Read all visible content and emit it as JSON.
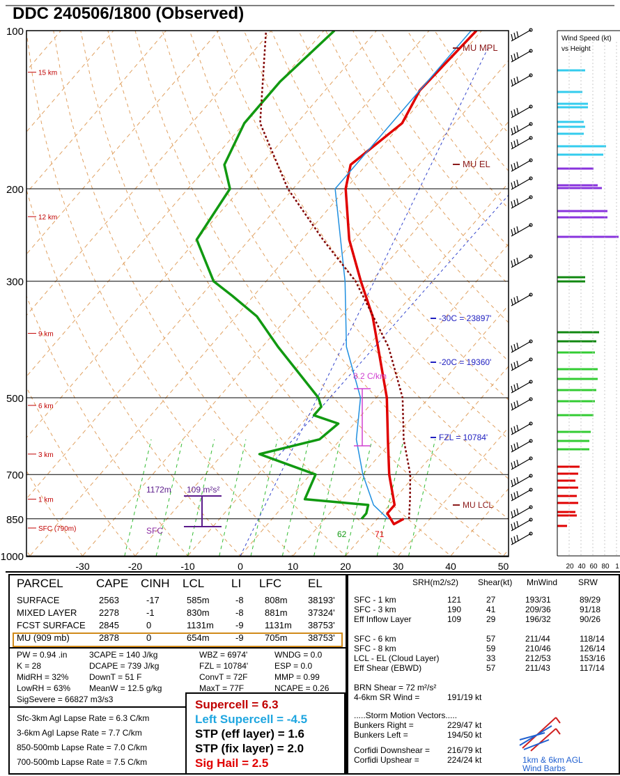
{
  "header": {
    "title": "DDC   240506/1800  (Observed)"
  },
  "chart_data": {
    "type": "line",
    "pressure_ticks": [
      "100",
      "200",
      "300",
      "500",
      "700",
      "850",
      "1000"
    ],
    "temp_ticks": [
      "-30",
      "-20",
      "-10",
      "0",
      "10",
      "20",
      "30",
      "40",
      "50"
    ],
    "height_labels": [
      "15 km",
      "12 km",
      "9 km",
      "6 km",
      "3 km",
      "1 km",
      "SFC (790m)"
    ],
    "annotations": {
      "mu_mpl": "MU  MPL",
      "mu_el": "MU  EL",
      "m30c": "-30C = 23897'",
      "m20c": "-20C = 19360'",
      "fzl": "FZL = 10784'",
      "lapse": "8.2 C/km",
      "lcl_lfc": "MU LCL",
      "inflow_top": "1172m",
      "inflow_srh": "109 m²s²",
      "sfc": "SFC",
      "sfc_td": "62",
      "sfc_t": "71"
    },
    "series": [
      {
        "name": "",
        "color": "#e00000",
        "points": [
          [
            850,
            25
          ],
          [
            870,
            24
          ],
          [
            830,
            21
          ],
          [
            800,
            21
          ],
          [
            700,
            15
          ],
          [
            600,
            9
          ],
          [
            500,
            2
          ],
          [
            400,
            -8
          ],
          [
            350,
            -14
          ],
          [
            300,
            -22
          ],
          [
            250,
            -31
          ],
          [
            200,
            -40
          ],
          [
            180,
            -43
          ],
          [
            150,
            -40
          ],
          [
            130,
            -42
          ],
          [
            100,
            -41
          ]
        ]
      },
      {
        "name": "",
        "color": "#119911",
        "points": [
          [
            850,
            17
          ],
          [
            830,
            17
          ],
          [
            800,
            16
          ],
          [
            780,
            3
          ],
          [
            700,
            1
          ],
          [
            640,
            -13
          ],
          [
            600,
            -4
          ],
          [
            560,
            -3
          ],
          [
            540,
            -9
          ],
          [
            520,
            -9
          ],
          [
            500,
            -11
          ],
          [
            400,
            -27
          ],
          [
            350,
            -36
          ],
          [
            320,
            -44
          ],
          [
            300,
            -50
          ],
          [
            250,
            -60
          ],
          [
            200,
            -62
          ],
          [
            180,
            -67
          ],
          [
            150,
            -70
          ],
          [
            125,
            -70
          ],
          [
            100,
            -68
          ]
        ]
      },
      {
        "name": "",
        "color": "#1f8fe0",
        "points": [
          [
            850,
            22
          ],
          [
            800,
            17
          ],
          [
            700,
            10
          ],
          [
            600,
            3
          ],
          [
            500,
            -3
          ],
          [
            400,
            -14
          ],
          [
            300,
            -25
          ],
          [
            200,
            -42
          ],
          [
            100,
            -42
          ]
        ]
      },
      {
        "name": "",
        "color": "#800000",
        "dash": true,
        "points": [
          [
            850,
            26
          ],
          [
            780,
            23
          ],
          [
            700,
            19
          ],
          [
            600,
            12
          ],
          [
            500,
            5
          ],
          [
            400,
            -6
          ],
          [
            300,
            -23
          ],
          [
            250,
            -36
          ],
          [
            200,
            -51
          ],
          [
            150,
            -67
          ],
          [
            100,
            -81
          ]
        ]
      }
    ],
    "wind_speed_axis": [
      "20",
      "40",
      "60",
      "80",
      "1"
    ],
    "wind_title": [
      "Wind Speed (kt)",
      "vs Height"
    ]
  },
  "parcel": {
    "headers": [
      "PARCEL",
      "CAPE",
      "CINH",
      "LCL",
      "LI",
      "LFC",
      "EL"
    ],
    "rows": [
      [
        "SURFACE",
        "2563",
        "-17",
        "585m",
        "-8",
        "808m",
        "38193'"
      ],
      [
        "MIXED LAYER",
        "2278",
        "-1",
        "830m",
        "-8",
        "881m",
        "37324'"
      ],
      [
        "FCST SURFACE",
        "2845",
        "0",
        "1131m",
        "-9",
        "1131m",
        "38753'"
      ],
      [
        "MU   (909 mb)",
        "2878",
        "0",
        "654m",
        "-9",
        "705m",
        "38753'"
      ]
    ]
  },
  "indices": {
    "col1": [
      "PW = 0.94 .in",
      "K = 28",
      "MidRH = 32%",
      "LowRH = 63%",
      "SigSevere = 66827 m3/s3"
    ],
    "col2": [
      "3CAPE = 140 J/kg",
      "DCAPE = 739 J/kg",
      "DownT = 51 F",
      "MeanW = 12.5 g/kg"
    ],
    "col3": [
      "WBZ = 6974'",
      "FZL = 10784'",
      "ConvT = 72F",
      "MaxT = 77F"
    ],
    "col4": [
      "WNDG = 0.0",
      "ESP = 0.0",
      "MMP = 0.99",
      "NCAPE = 0.26"
    ]
  },
  "lapse": [
    "Sfc-3km Agl Lapse Rate =   6.3 C/km",
    "3-6km Agl Lapse Rate =   7.7 C/km",
    "850-500mb Lapse Rate =   7.0 C/km",
    "700-500mb Lapse Rate =   7.5 C/km"
  ],
  "composite": {
    "supercell": "Supercell = 6.3",
    "left": "Left Supercell = -4.5",
    "stp_eff": "STP (eff layer) = 1.6",
    "stp_fix": "STP (fix layer) = 2.0",
    "sighail": "Sig Hail = 2.5"
  },
  "kinematics": {
    "headers": [
      "SRH(m2/s2)",
      "Shear(kt)",
      "MnWind",
      "SRW"
    ],
    "rows": [
      [
        "SFC - 1 km",
        "121",
        "27",
        "193/31",
        "89/29"
      ],
      [
        "SFC - 3 km",
        "190",
        "41",
        "209/36",
        "91/18"
      ],
      [
        "Eff Inflow Layer",
        "109",
        "29",
        "196/32",
        "90/26"
      ],
      [
        "SFC - 6 km",
        "",
        "57",
        "211/44",
        "118/14"
      ],
      [
        "SFC - 8 km",
        "",
        "59",
        "210/46",
        "126/14"
      ],
      [
        "LCL - EL (Cloud Layer)",
        "",
        "33",
        "212/53",
        "153/16"
      ],
      [
        "Eff Shear (EBWD)",
        "",
        "57",
        "211/43",
        "117/14"
      ]
    ],
    "brn": "BRN Shear =   72 m²/s²",
    "srwind_label": "4-6km SR Wind =",
    "srwind_val": "191/19 kt",
    "storm_title": ".....Storm Motion Vectors.....",
    "storm": [
      [
        "Bunkers Right =",
        "229/47 kt"
      ],
      [
        "Bunkers Left =",
        "194/50 kt"
      ],
      [
        "Corfidi Downshear =",
        "216/79 kt"
      ],
      [
        "Corfidi Upshear =",
        "224/24 kt"
      ]
    ],
    "barb_label": [
      "1km & 6km AGL",
      "Wind Barbs"
    ]
  }
}
